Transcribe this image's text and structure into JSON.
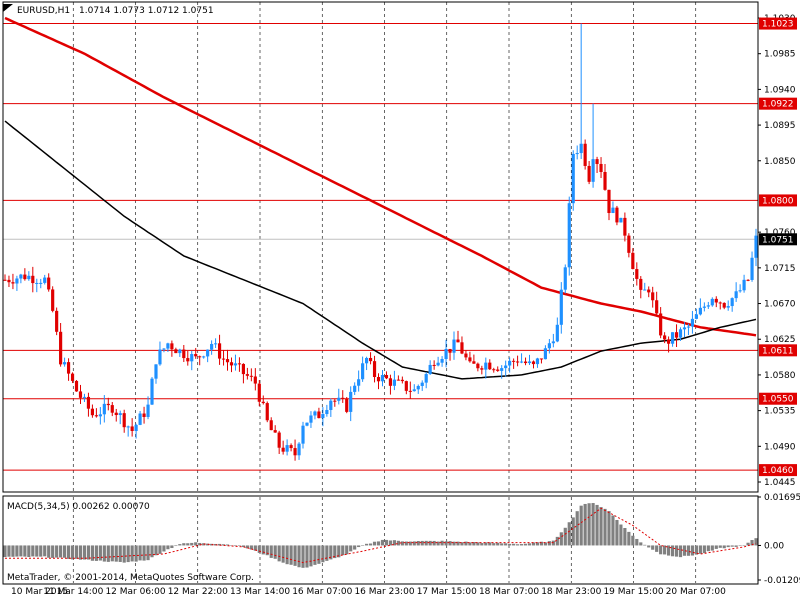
{
  "header": {
    "symbol": "EURUSD,H1",
    "ohlc": "1.0714 1.0773 1.0712 1.0751"
  },
  "copyright": "MetaTrader, © 2001-2014, MetaQuotes Software Corp.",
  "colors": {
    "bull": "#1e90ff",
    "bear": "#e00000",
    "level": "#e00000",
    "ma_slow": "#e00000",
    "ma_fast": "#000000",
    "macd_hist": "#808080",
    "macd_signal": "#e00000",
    "grid": "#000000",
    "price_tag_bg": "#000000"
  },
  "chart_data": [
    {
      "type": "candlestick",
      "title": "EURUSD,H1",
      "ylim": [
        1.0445,
        1.103
      ],
      "y_ticks": [
        "1.1030",
        "1.0985",
        "1.0940",
        "1.0895",
        "1.0850",
        "1.0760",
        "1.0715",
        "1.0670",
        "1.0625",
        "1.0580",
        "1.0535",
        "1.0490",
        "1.0445"
      ],
      "x_ticks": [
        "10 Mar 2015",
        "11 Mar 14:00",
        "12 Mar 06:00",
        "12 Mar 22:00",
        "13 Mar 14:00",
        "16 Mar 07:00",
        "16 Mar 23:00",
        "17 Mar 15:00",
        "18 Mar 07:00",
        "18 Mar 23:00",
        "19 Mar 15:00",
        "20 Mar 07:00"
      ],
      "horizontal_levels": [
        {
          "label": "1.1023",
          "value": 1.1023
        },
        {
          "label": "1.0922",
          "value": 1.0922
        },
        {
          "label": "1.0800",
          "value": 1.08
        },
        {
          "label": "1.0611",
          "value": 1.0611
        },
        {
          "label": "1.0550",
          "value": 1.055
        },
        {
          "label": "1.0460",
          "value": 1.046
        }
      ],
      "current_price": {
        "label": "1.0751",
        "value": 1.0751
      },
      "close_path": [
        [
          0,
          1.07
        ],
        [
          5,
          1.0705
        ],
        [
          10,
          1.07
        ],
        [
          12,
          1.066
        ],
        [
          14,
          1.06
        ],
        [
          18,
          1.056
        ],
        [
          22,
          1.053
        ],
        [
          27,
          1.054
        ],
        [
          32,
          1.051
        ],
        [
          36,
          1.054
        ],
        [
          38,
          1.06
        ],
        [
          41,
          1.062
        ],
        [
          44,
          1.061
        ],
        [
          48,
          1.06
        ],
        [
          52,
          1.062
        ],
        [
          55,
          1.06
        ],
        [
          58,
          1.059
        ],
        [
          63,
          1.057
        ],
        [
          66,
          1.052
        ],
        [
          69,
          1.049
        ],
        [
          73,
          1.048
        ],
        [
          75,
          1.052
        ],
        [
          79,
          1.053
        ],
        [
          82,
          1.055
        ],
        [
          86,
          1.054
        ],
        [
          88,
          1.057
        ],
        [
          91,
          1.06
        ],
        [
          93,
          1.058
        ],
        [
          98,
          1.057
        ],
        [
          103,
          1.056
        ],
        [
          106,
          1.058
        ],
        [
          108,
          1.06
        ],
        [
          111,
          1.061
        ],
        [
          114,
          1.062
        ],
        [
          117,
          1.059
        ],
        [
          121,
          1.0595
        ],
        [
          125,
          1.059
        ],
        [
          129,
          1.06
        ],
        [
          133,
          1.059
        ],
        [
          136,
          1.061
        ],
        [
          139,
          1.064
        ],
        [
          141,
          1.072
        ],
        [
          143,
          1.086
        ],
        [
          145,
          1.087
        ],
        [
          147,
          1.083
        ],
        [
          148,
          1.086
        ],
        [
          150,
          1.084
        ],
        [
          152,
          1.079
        ],
        [
          154,
          1.078
        ],
        [
          156,
          1.076
        ],
        [
          158,
          1.072
        ],
        [
          160,
          1.068
        ],
        [
          162,
          1.069
        ],
        [
          164,
          1.065
        ],
        [
          166,
          1.062
        ],
        [
          169,
          1.063
        ],
        [
          172,
          1.064
        ],
        [
          175,
          1.066
        ],
        [
          178,
          1.068
        ],
        [
          181,
          1.067
        ],
        [
          184,
          1.068
        ],
        [
          187,
          1.07
        ],
        [
          189,
          1.0751
        ]
      ],
      "ma_slow": [
        [
          0,
          1.103
        ],
        [
          20,
          1.0985
        ],
        [
          40,
          1.093
        ],
        [
          60,
          1.088
        ],
        [
          80,
          1.083
        ],
        [
          100,
          1.078
        ],
        [
          120,
          1.073
        ],
        [
          135,
          1.069
        ],
        [
          150,
          1.067
        ],
        [
          160,
          1.066
        ],
        [
          175,
          1.064
        ],
        [
          189,
          1.063
        ]
      ],
      "ma_fast": [
        [
          0,
          1.09
        ],
        [
          15,
          1.084
        ],
        [
          30,
          1.078
        ],
        [
          45,
          1.073
        ],
        [
          60,
          1.07
        ],
        [
          75,
          1.067
        ],
        [
          90,
          1.062
        ],
        [
          100,
          1.059
        ],
        [
          115,
          1.0575
        ],
        [
          130,
          1.058
        ],
        [
          140,
          1.059
        ],
        [
          150,
          1.061
        ],
        [
          160,
          1.062
        ],
        [
          170,
          1.0625
        ],
        [
          180,
          1.064
        ],
        [
          189,
          1.065
        ]
      ]
    },
    {
      "type": "bar",
      "title": "MACD(5,34,5) 0.00262 0.00070",
      "ylim": [
        -0.01209,
        0.01695
      ],
      "y_ticks": [
        "0.01695",
        "0.00",
        "-0.01209"
      ],
      "hist_path": [
        [
          0,
          -0.004
        ],
        [
          10,
          -0.004
        ],
        [
          20,
          -0.005
        ],
        [
          30,
          -0.006
        ],
        [
          36,
          -0.005
        ],
        [
          40,
          -0.002
        ],
        [
          44,
          0.0005
        ],
        [
          48,
          0.001
        ],
        [
          55,
          0.0005
        ],
        [
          60,
          -0.0005
        ],
        [
          65,
          -0.003
        ],
        [
          70,
          -0.006
        ],
        [
          75,
          -0.008
        ],
        [
          80,
          -0.006
        ],
        [
          86,
          -0.003
        ],
        [
          90,
          0.0
        ],
        [
          95,
          0.002
        ],
        [
          100,
          0.0015
        ],
        [
          110,
          0.0015
        ],
        [
          120,
          0.001
        ],
        [
          130,
          0.0005
        ],
        [
          138,
          0.0015
        ],
        [
          142,
          0.008
        ],
        [
          145,
          0.014
        ],
        [
          148,
          0.015
        ],
        [
          152,
          0.012
        ],
        [
          156,
          0.006
        ],
        [
          160,
          0.001
        ],
        [
          165,
          -0.003
        ],
        [
          170,
          -0.004
        ],
        [
          175,
          -0.003
        ],
        [
          180,
          -0.001
        ],
        [
          186,
          0.0
        ],
        [
          189,
          0.0026
        ]
      ],
      "signal_path": [
        [
          0,
          -0.0045
        ],
        [
          20,
          -0.0045
        ],
        [
          40,
          -0.003
        ],
        [
          50,
          0.0005
        ],
        [
          60,
          -0.0005
        ],
        [
          75,
          -0.006
        ],
        [
          90,
          -0.002
        ],
        [
          100,
          0.001
        ],
        [
          120,
          0.001
        ],
        [
          138,
          0.001
        ],
        [
          145,
          0.008
        ],
        [
          150,
          0.013
        ],
        [
          158,
          0.007
        ],
        [
          165,
          0.0
        ],
        [
          175,
          -0.003
        ],
        [
          186,
          -0.0005
        ],
        [
          189,
          0.0007
        ]
      ]
    }
  ]
}
